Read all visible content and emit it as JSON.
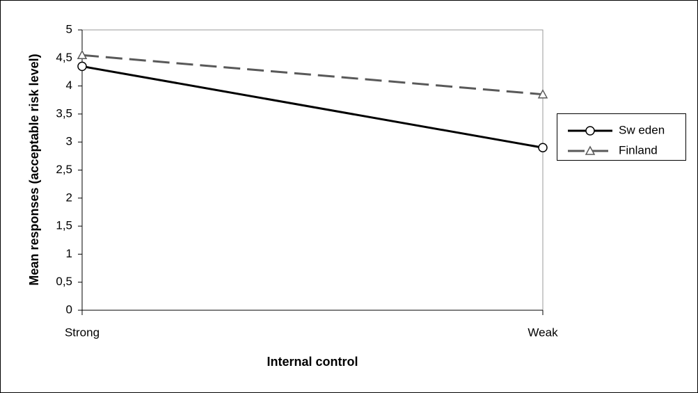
{
  "chart_data": {
    "type": "line",
    "x_label": "Internal control",
    "y_label": "Mean responses (acceptable risk level)",
    "categories": [
      "Strong",
      "Weak"
    ],
    "series": [
      {
        "name": "Sw eden",
        "color": "#000000",
        "marker": "circle",
        "dash": false,
        "values": [
          4.35,
          2.9
        ]
      },
      {
        "name": "Finland",
        "color": "#595959",
        "marker": "triangle",
        "dash": true,
        "values": [
          4.55,
          3.85
        ]
      }
    ],
    "ylim": [
      0,
      5
    ],
    "yticks": [
      0,
      {
        "value": 0.5,
        "label": "0,5"
      },
      1,
      {
        "value": 1.5,
        "label": "1,5"
      },
      2,
      {
        "value": 2.5,
        "label": "2,5"
      },
      3,
      {
        "value": 3.5,
        "label": "3,5"
      },
      4,
      {
        "value": 4.5,
        "label": "4,5"
      },
      5
    ]
  }
}
